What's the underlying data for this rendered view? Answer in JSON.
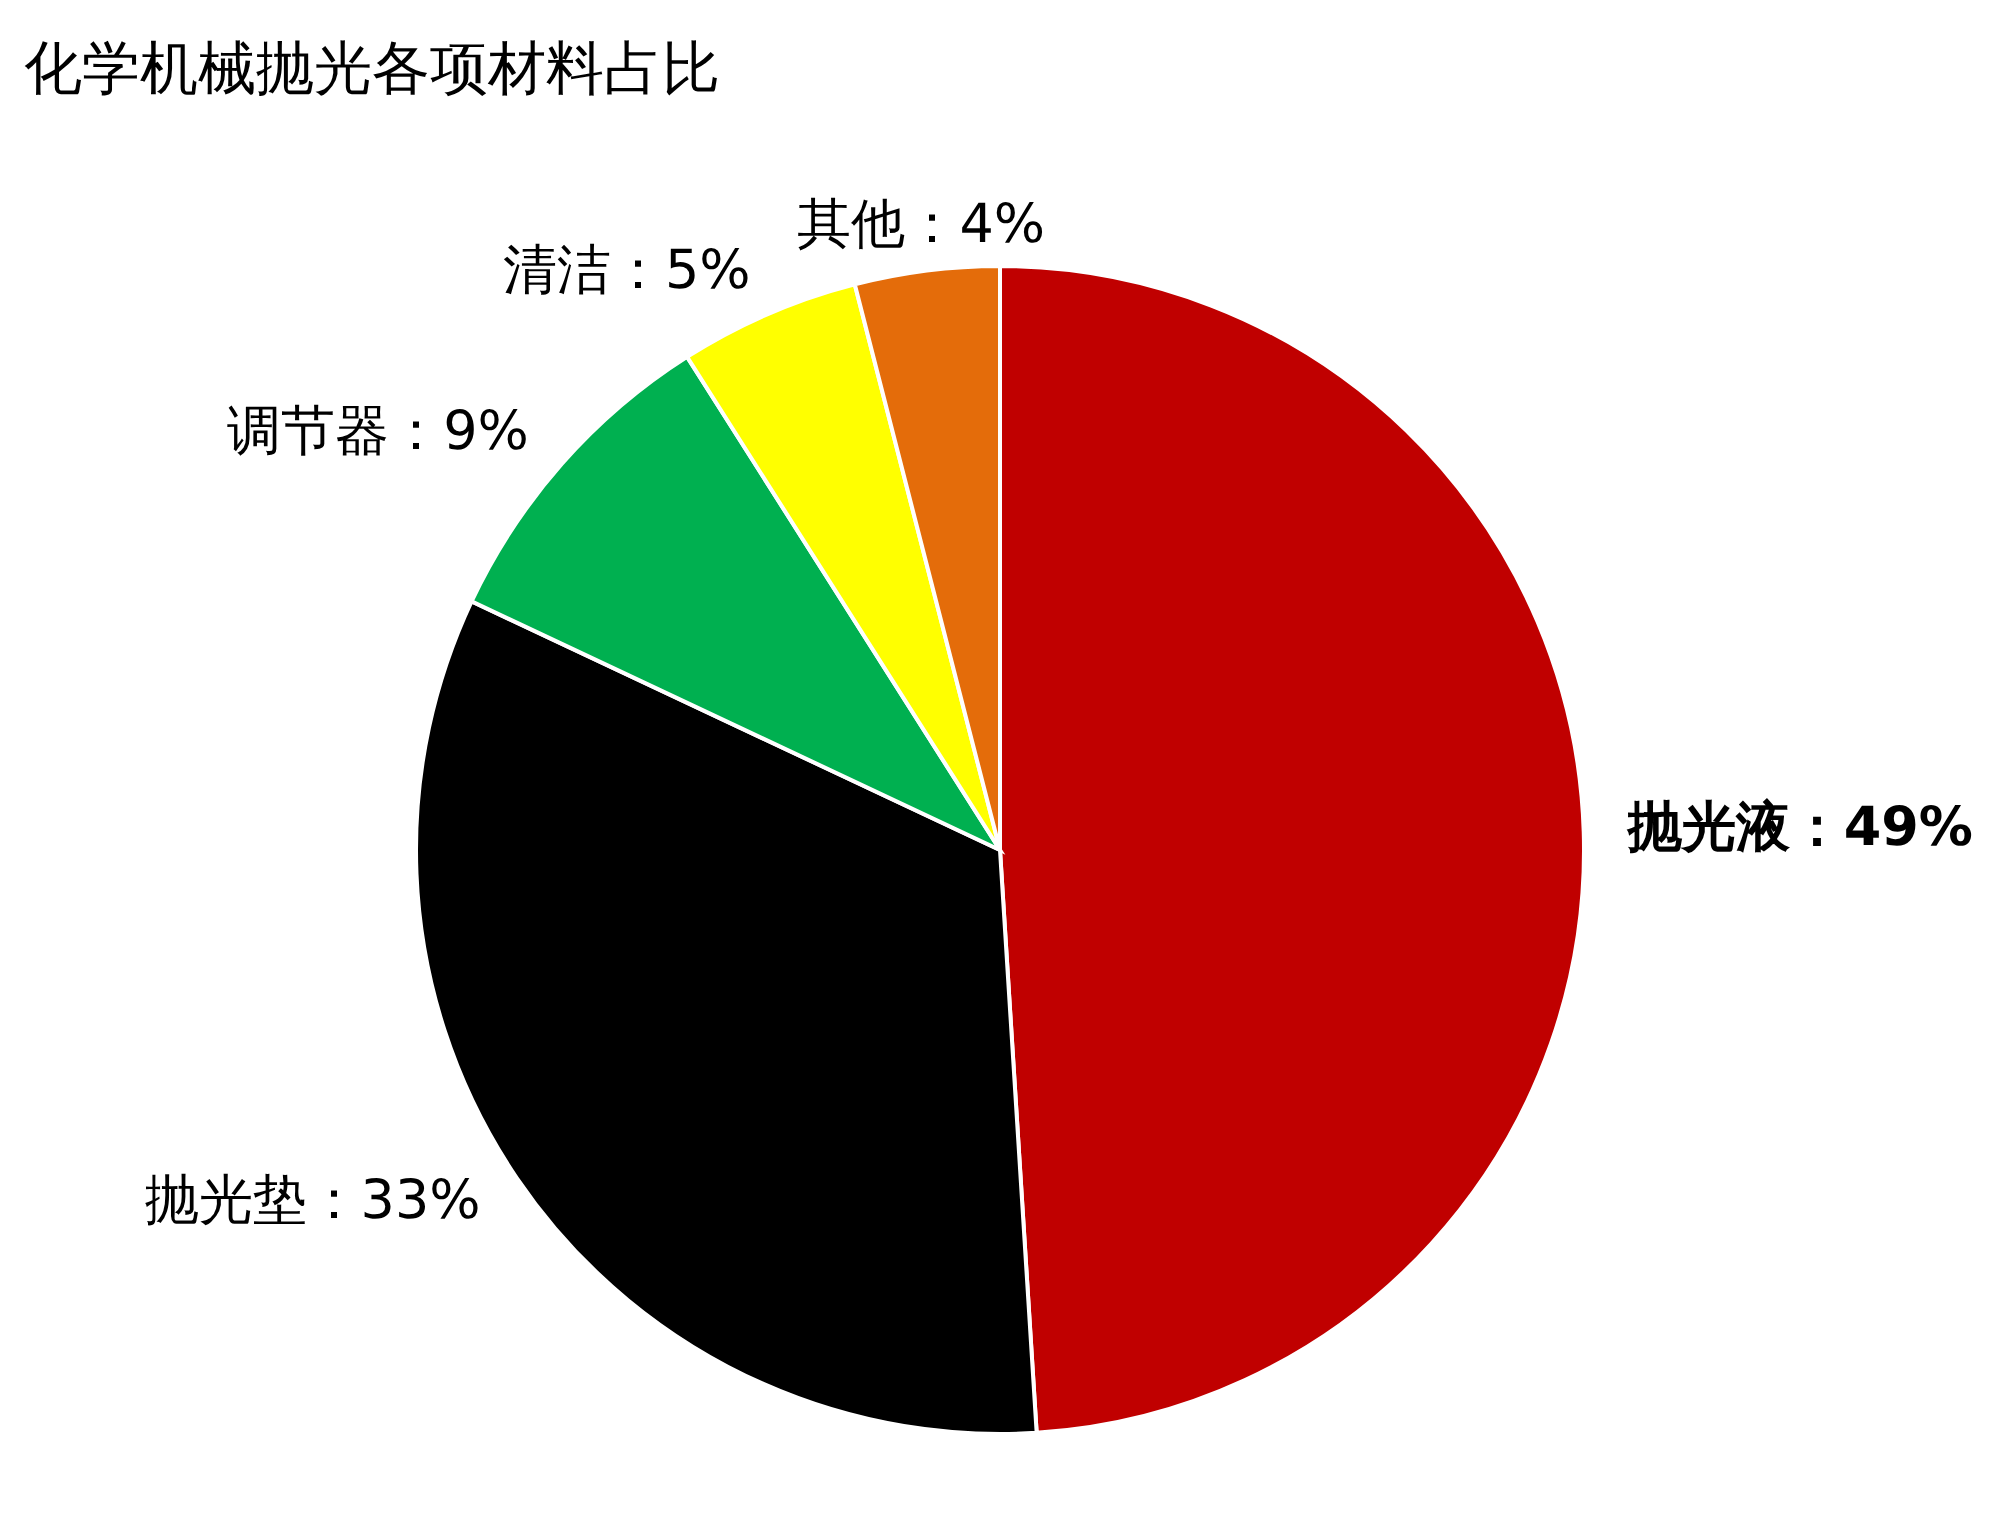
{
  "chart_data": {
    "type": "pie",
    "title": "化学机械抛光各项材料占比",
    "categories": [
      "抛光液",
      "抛光垫",
      "调节器",
      "清洁",
      "其他"
    ],
    "values": [
      49,
      33,
      9,
      5,
      4
    ],
    "colors": [
      "#c00000",
      "#000000",
      "#00b050",
      "#ffff00",
      "#e46c0a"
    ],
    "value_labels": [
      "49%",
      "33%",
      "9%",
      "5%",
      "4%"
    ]
  }
}
